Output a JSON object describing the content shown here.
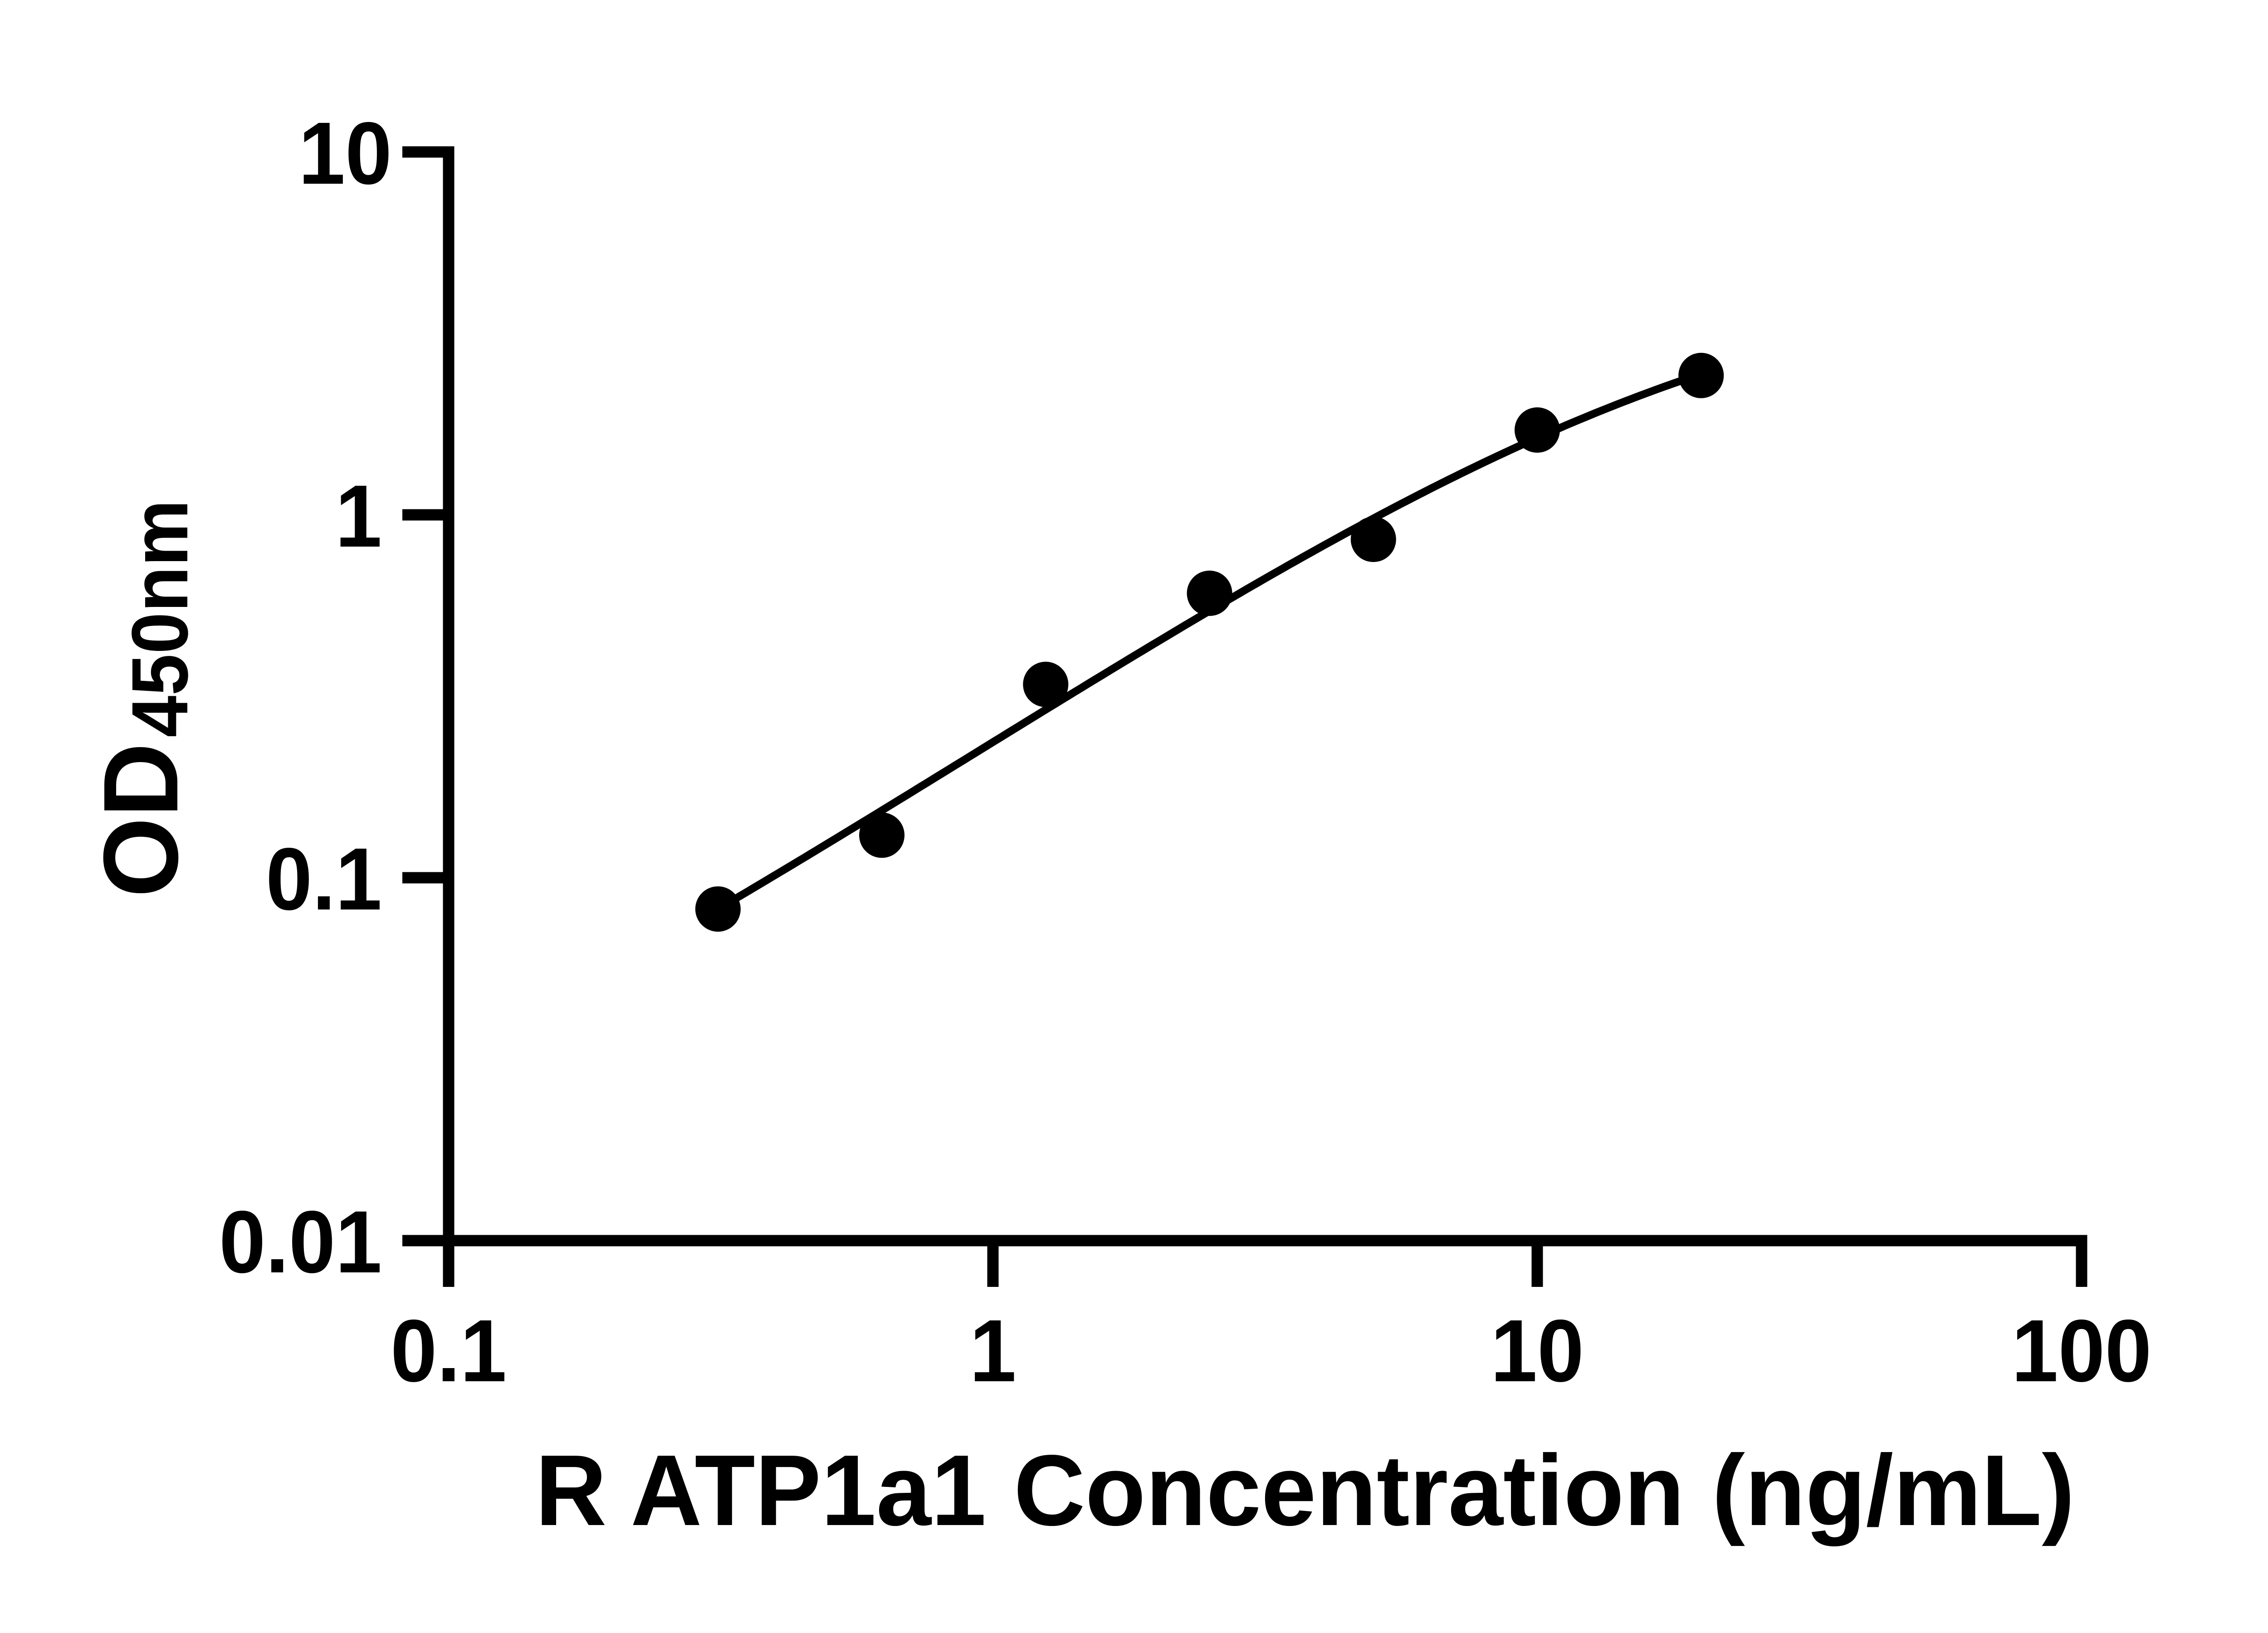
{
  "chart_data": {
    "type": "scatter",
    "x": [
      0.3125,
      0.625,
      1.25,
      2.5,
      5,
      10,
      20
    ],
    "y": [
      0.082,
      0.131,
      0.341,
      0.608,
      0.856,
      1.713,
      2.421
    ],
    "xlabel": "R ATP1a1 Concentration (ng/mL)",
    "ylabel_main": "OD",
    "ylabel_sub": "450nm",
    "xscale": "log",
    "yscale": "log",
    "xlim": [
      0.1,
      100
    ],
    "ylim": [
      0.01,
      10
    ],
    "x_ticks": [
      {
        "value": 0.1,
        "label": "0.1"
      },
      {
        "value": 1,
        "label": "1"
      },
      {
        "value": 10,
        "label": "10"
      },
      {
        "value": 100,
        "label": "100"
      }
    ],
    "y_ticks": [
      {
        "value": 0.01,
        "label": "0.01"
      },
      {
        "value": 0.1,
        "label": "0.1"
      },
      {
        "value": 1,
        "label": "1"
      },
      {
        "value": 10,
        "label": "10"
      }
    ],
    "grid": false,
    "legend": false,
    "marker": {
      "shape": "circle",
      "color": "#000000"
    },
    "fit_curve": {
      "type": "4PL",
      "bottom": 0.00978,
      "top": 4.8375,
      "ec50": 19.646,
      "hill": 1.011
    },
    "colors": {
      "ink": "#000000",
      "background": "#ffffff"
    }
  }
}
